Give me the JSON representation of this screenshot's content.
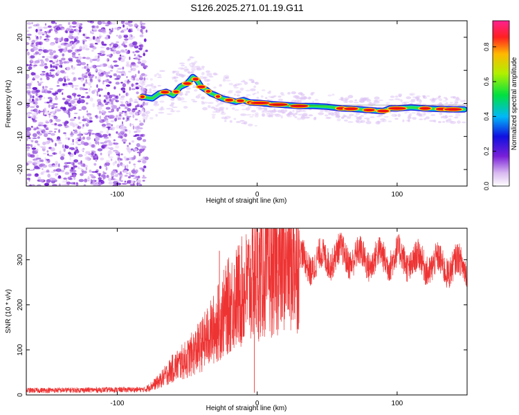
{
  "title": "S126.2025.271.01.19.G11",
  "chart_data": [
    {
      "type": "heatmap",
      "name": "spectrogram",
      "xlabel": "Height of straight line (km)",
      "ylabel": "Frequency (Hz)",
      "xlim": [
        -165,
        150
      ],
      "ylim": [
        -25,
        25
      ],
      "xticks": [
        -100,
        0,
        100
      ],
      "yticks": [
        -20,
        -10,
        0,
        10,
        20
      ],
      "noise_region_x": [
        -165,
        -82
      ],
      "ridge": {
        "x": [
          -82,
          -75,
          -70,
          -65,
          -60,
          -55,
          -50,
          -46,
          -43,
          -40,
          -36,
          -33,
          -30,
          -25,
          -20,
          -15,
          -10,
          -5,
          0,
          10,
          20,
          30,
          40,
          50,
          60,
          70,
          80,
          85,
          90,
          95,
          100,
          110,
          120,
          130,
          140,
          148
        ],
        "y": [
          2,
          1.5,
          3,
          3.5,
          2.5,
          5,
          6,
          8,
          7,
          5,
          4,
          3,
          2.5,
          1.5,
          1,
          0.5,
          1,
          0.3,
          0.2,
          -0.2,
          -0.5,
          -0.8,
          -0.8,
          -1,
          -1.5,
          -1.7,
          -2,
          -2.2,
          -2.3,
          -1.5,
          -1.5,
          -1.2,
          -1.5,
          -1.7,
          -1.8,
          -1.8
        ]
      },
      "hot_spots_x": [
        -82,
        -66,
        -58,
        -50,
        -44,
        -40,
        -35,
        -28,
        -20,
        -12,
        -5,
        2,
        15,
        30,
        60,
        67,
        80,
        90,
        100,
        120,
        132,
        140
      ]
    },
    {
      "type": "colorbar",
      "label": "Normalized spectral amplitude",
      "range": [
        0,
        0.95
      ],
      "ticks": [
        0.0,
        0.2,
        0.4,
        0.6,
        0.8
      ]
    },
    {
      "type": "line",
      "name": "snr",
      "color": "#ee3333",
      "xlabel": "Height of straight line (km)",
      "ylabel": "SNR (10 * v/v)",
      "xlim": [
        -165,
        150
      ],
      "ylim": [
        0,
        370
      ],
      "xticks": [
        -100,
        0,
        100
      ],
      "yticks": [
        0,
        100,
        200,
        300
      ],
      "envelope": {
        "x": [
          -165,
          -80,
          -70,
          -60,
          -50,
          -40,
          -30,
          -20,
          -10,
          -5,
          0,
          10,
          20,
          30,
          40,
          50,
          60,
          80,
          100,
          120,
          140,
          150
        ],
        "y": [
          10,
          12,
          30,
          60,
          80,
          110,
          150,
          200,
          230,
          250,
          260,
          280,
          300,
          300,
          290,
          305,
          310,
          300,
          305,
          290,
          285,
          290
        ]
      },
      "spikes": [
        {
          "x": -27,
          "y": 320
        },
        {
          "x": -3,
          "y": 370
        },
        {
          "x": -2,
          "y": 5
        },
        {
          "x": 15,
          "y": 350
        }
      ]
    }
  ]
}
